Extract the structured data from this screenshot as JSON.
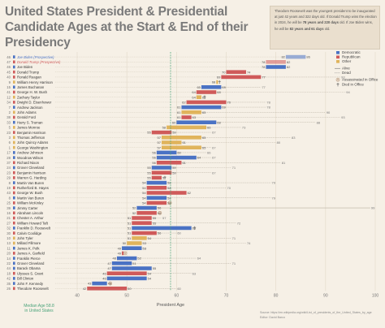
{
  "title": "United States President & Presidential Candidate Ages at the Start & End of their Presidency",
  "note": {
    "p1": "Theodore Roosevelt was the youngest president to be inaugurated at just 42 years and 322 days old. If Donald Trump wins the election in 2024, he will be",
    "p1_bold": "78 years and 220 days",
    "p1_end": "old.",
    "p2": "If Joe Biden wins, he will be",
    "p2_bold": "82 years and 61 days",
    "p2_end": "old."
  },
  "legend": {
    "parties": [
      {
        "label": "Democratic",
        "color": "#4a72c4"
      },
      {
        "label": "Republican",
        "color": "#cf5a5a"
      },
      {
        "label": "Other",
        "color": "#e0b45c"
      }
    ],
    "status": [
      {
        "label": "Alive",
        "style": "solid"
      },
      {
        "label": "Dead",
        "style": "dotted"
      }
    ],
    "markers": [
      {
        "label": "Assassinated in Office",
        "icon": "target-icon"
      },
      {
        "label": "Died in Office",
        "icon": "cross-icon"
      }
    ]
  },
  "median": {
    "label": "Median Age 58.8",
    "label2": "in United States",
    "value": 58.8
  },
  "footer": {
    "source": "Source: https://en.wikipedia.org/wiki/List_of_presidents_of_the_United_States_by_age",
    "editor": "Editor: David Barco"
  },
  "colors": {
    "democratic": "#4a72c4",
    "republican": "#cf5a5a",
    "other": "#e0b45c",
    "background": "#f6f0e6",
    "median": "#4aa37a"
  },
  "chart_data": {
    "type": "bar",
    "xlabel": "President Age",
    "xlim": [
      40,
      100
    ],
    "xticks": [
      40,
      50,
      60,
      70,
      80,
      90,
      100
    ],
    "rows": [
      {
        "num": "46",
        "name": "Joe Biden (Prospective)",
        "start": 82,
        "end": 86,
        "party": "democratic",
        "death": null,
        "prospective": true,
        "start_label": "82",
        "end_label": "86"
      },
      {
        "num": "47",
        "name": "Donald Trump (Prospective)",
        "start": 78,
        "end": 82,
        "party": "republican",
        "death": null,
        "prospective": true,
        "start_label": "78",
        "end_label": "82"
      },
      {
        "num": "46",
        "name": "Joe Biden",
        "start": 78,
        "end": 82,
        "party": "democratic",
        "death": null,
        "start_label": "78",
        "end_label": "82"
      },
      {
        "num": "45",
        "name": "Donald Trump",
        "start": 70,
        "end": 74,
        "party": "republican",
        "death": null,
        "start_label": "70",
        "end_label": "74"
      },
      {
        "num": "40",
        "name": "Ronald Reagan",
        "start": 69,
        "end": 77,
        "party": "republican",
        "death": 93,
        "start_label": "69",
        "end_label": "77",
        "death_label": "93"
      },
      {
        "num": "9",
        "name": "William Henry Harrison",
        "start": 68,
        "end": 68,
        "party": "other",
        "death": 68,
        "start_label": "68",
        "end_label": "",
        "died_in_office": true
      },
      {
        "num": "15",
        "name": "James Buchanan",
        "start": 65,
        "end": 69,
        "party": "democratic",
        "death": 77,
        "start_label": "65",
        "end_label": "69",
        "death_label": "77"
      },
      {
        "num": "41",
        "name": "George H. W. Bush",
        "start": 64,
        "end": 68,
        "party": "republican",
        "death": 94,
        "start_label": "64",
        "end_label": "68",
        "death_label": "94"
      },
      {
        "num": "12",
        "name": "Zachary Taylor",
        "start": 64,
        "end": 65,
        "party": "other",
        "death": 65,
        "start_label": "64",
        "end_label": "65",
        "died_in_office": true
      },
      {
        "num": "34",
        "name": "Dwight D. Eisenhower",
        "start": 62,
        "end": 70,
        "party": "republican",
        "death": 78,
        "start_label": "62",
        "end_label": "70",
        "death_label": "78"
      },
      {
        "num": "7",
        "name": "Andrew Jackson",
        "start": 61,
        "end": 69,
        "party": "democratic",
        "death": 78,
        "start_label": "61",
        "end_label": "69",
        "death_label": "78"
      },
      {
        "num": "2",
        "name": "John Adams",
        "start": 61,
        "end": 65,
        "party": "other",
        "death": 90,
        "start_label": "61",
        "end_label": "65",
        "death_label": "90"
      },
      {
        "num": "38",
        "name": "Gerald Ford",
        "start": 61,
        "end": 63,
        "party": "republican",
        "death": 93,
        "start_label": "61",
        "end_label": "63",
        "death_label": "93"
      },
      {
        "num": "33",
        "name": "Harry S. Truman",
        "start": 60,
        "end": 68,
        "party": "democratic",
        "death": 88,
        "start_label": "60",
        "end_label": "68",
        "death_label": "88"
      },
      {
        "num": "5",
        "name": "James Monroe",
        "start": 58,
        "end": 66,
        "party": "other",
        "death": 73,
        "start_label": "58",
        "end_label": "66",
        "death_label": "73"
      },
      {
        "num": "23",
        "name": "Benjamin Harrison",
        "start": 55,
        "end": 59,
        "party": "republican",
        "death": 67,
        "start_label": "55",
        "end_label": "59",
        "death_label": "67"
      },
      {
        "num": "3",
        "name": "Thomas Jefferson",
        "start": 57,
        "end": 65,
        "party": "other",
        "death": 83,
        "start_label": "57",
        "end_label": "65",
        "death_label": "83"
      },
      {
        "num": "6",
        "name": "John Quincy Adams",
        "start": 57,
        "end": 61,
        "party": "other",
        "death": 80,
        "start_label": "57",
        "end_label": "61",
        "death_label": "80"
      },
      {
        "num": "1",
        "name": "George Washington",
        "start": 57,
        "end": 65,
        "party": "other",
        "death": 67,
        "start_label": "57",
        "end_label": "65",
        "death_label": "67"
      },
      {
        "num": "17",
        "name": "Andrew Johnson",
        "start": 56,
        "end": 60,
        "party": "democratic",
        "death": 66,
        "start_label": "56",
        "end_label": "60",
        "death_label": "66"
      },
      {
        "num": "28",
        "name": "Woodrow Wilson",
        "start": 56,
        "end": 64,
        "party": "democratic",
        "death": 67,
        "start_label": "56",
        "end_label": "64",
        "death_label": "67"
      },
      {
        "num": "37",
        "name": "Richard Nixon",
        "start": 56,
        "end": 61,
        "party": "republican",
        "death": 81,
        "start_label": "56",
        "end_label": "61",
        "death_label": "81"
      },
      {
        "num": "24",
        "name": "Grover Cleveland",
        "start": 55,
        "end": 59,
        "party": "democratic",
        "death": 71,
        "start_label": "55",
        "end_label": "59",
        "death_label": "71"
      },
      {
        "num": "23",
        "name": "Benjamin Harrison",
        "start": 55,
        "end": 59,
        "party": "republican",
        "death": 67,
        "start_label": "55",
        "end_label": "59",
        "death_label": "67"
      },
      {
        "num": "29",
        "name": "Warren G. Harding",
        "start": 55,
        "end": 57,
        "party": "republican",
        "death": 57,
        "start_label": "55",
        "end_label": "57",
        "died_in_office": true
      },
      {
        "num": "8",
        "name": "Martin Van Buren",
        "start": 54,
        "end": 58,
        "party": "democratic",
        "death": 79,
        "start_label": "54",
        "end_label": "58",
        "death_label": "79"
      },
      {
        "num": "19",
        "name": "Rutherford B. Hayes",
        "start": 54,
        "end": 58,
        "party": "republican",
        "death": 70,
        "start_label": "54",
        "end_label": "58",
        "death_label": "70"
      },
      {
        "num": "43",
        "name": "George W. Bush",
        "start": 54,
        "end": 62,
        "party": "republican",
        "death": null,
        "start_label": "54",
        "end_label": "62"
      },
      {
        "num": "8",
        "name": "Martin Van Buren",
        "start": 54,
        "end": 58,
        "party": "democratic",
        "death": 79,
        "start_label": "54",
        "end_label": "58",
        "death_label": "79"
      },
      {
        "num": "25",
        "name": "William McKinley",
        "start": 54,
        "end": 58,
        "party": "republican",
        "death": 58,
        "start_label": "54",
        "end_label": "58",
        "assassinated": true
      },
      {
        "num": "39",
        "name": "Jimmy Carter",
        "start": 52,
        "end": 56,
        "party": "democratic",
        "death": null,
        "start_label": "52",
        "end_label": "56",
        "alive_to": 99,
        "alive_label": "99"
      },
      {
        "num": "16",
        "name": "Abraham Lincoln",
        "start": 52,
        "end": 56,
        "party": "republican",
        "death": 56,
        "start_label": "52",
        "end_label": "56",
        "assassinated": true
      },
      {
        "num": "21",
        "name": "Chester A. Arthur",
        "start": 51,
        "end": 55,
        "party": "republican",
        "death": 57,
        "start_label": "51",
        "end_label": "55",
        "death_label": "57"
      },
      {
        "num": "27",
        "name": "William Howard Taft",
        "start": 51,
        "end": 55,
        "party": "republican",
        "death": 72,
        "start_label": "51",
        "end_label": "55",
        "death_label": "72"
      },
      {
        "num": "32",
        "name": "Franklin D. Roosevelt",
        "start": 51,
        "end": 63,
        "party": "democratic",
        "death": 63,
        "start_label": "51",
        "end_label": "63",
        "died_in_office": true
      },
      {
        "num": "30",
        "name": "Calvin Coolidge",
        "start": 51,
        "end": 56,
        "party": "republican",
        "death": 60,
        "start_label": "51",
        "end_label": "56",
        "death_label": "60"
      },
      {
        "num": "10",
        "name": "John Tyler",
        "start": 51,
        "end": 54,
        "party": "other",
        "death": 71,
        "start_label": "51",
        "end_label": "54",
        "death_label": "71"
      },
      {
        "num": "13",
        "name": "Millard Fillmore",
        "start": 50,
        "end": 53,
        "party": "other",
        "death": 74,
        "start_label": "50",
        "end_label": "53",
        "death_label": "74"
      },
      {
        "num": "11",
        "name": "James K. Polk",
        "start": 49,
        "end": 53,
        "party": "democratic",
        "death": 53,
        "start_label": "49",
        "end_label": "53",
        "death_label": "53"
      },
      {
        "num": "20",
        "name": "James A. Garfield",
        "start": 49,
        "end": 49,
        "party": "republican",
        "death": 49,
        "start_label": "49",
        "end_label": "",
        "assassinated": true
      },
      {
        "num": "14",
        "name": "Franklin Pierce",
        "start": 48,
        "end": 52,
        "party": "democratic",
        "death": 64,
        "start_label": "48",
        "end_label": "52",
        "death_label": "64"
      },
      {
        "num": "22",
        "name": "Grover Cleveland",
        "start": 47,
        "end": 51,
        "party": "democratic",
        "death": 71,
        "start_label": "47",
        "end_label": "51",
        "death_label": "71"
      },
      {
        "num": "44",
        "name": "Barack Obama",
        "start": 47,
        "end": 55,
        "party": "democratic",
        "death": null,
        "start_label": "47",
        "end_label": "55"
      },
      {
        "num": "18",
        "name": "Ulysses S. Grant",
        "start": 46,
        "end": 54,
        "party": "republican",
        "death": 63,
        "start_label": "46",
        "end_label": "54",
        "death_label": "63"
      },
      {
        "num": "42",
        "name": "Bill Clinton",
        "start": 46,
        "end": 54,
        "party": "democratic",
        "death": null,
        "start_label": "46",
        "end_label": "54"
      },
      {
        "num": "35",
        "name": "John F. Kennedy",
        "start": 43,
        "end": 46,
        "party": "democratic",
        "death": 46,
        "start_label": "43",
        "end_label": "46",
        "assassinated": true
      },
      {
        "num": "26",
        "name": "Theodore Roosevelt",
        "start": 42,
        "end": 50,
        "party": "republican",
        "death": 60,
        "start_label": "42",
        "end_label": "50",
        "death_label": "60"
      }
    ]
  }
}
